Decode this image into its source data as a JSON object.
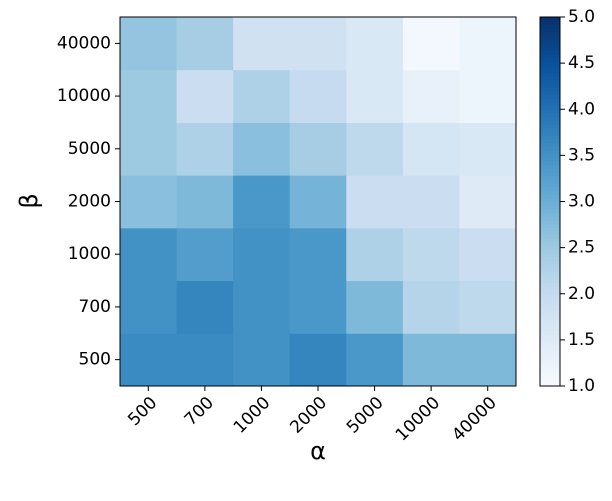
{
  "chart_data": {
    "type": "heatmap",
    "xlabel": "α",
    "ylabel": "β",
    "x_categories": [
      "500",
      "700",
      "1000",
      "2000",
      "5000",
      "10000",
      "40000"
    ],
    "y_categories": [
      "500",
      "700",
      "1000",
      "2000",
      "5000",
      "10000",
      "40000"
    ],
    "values": [
      [
        3.6,
        3.6,
        3.5,
        3.7,
        3.4,
        2.8,
        2.8
      ],
      [
        3.5,
        3.7,
        3.5,
        3.4,
        2.8,
        2.2,
        2.1
      ],
      [
        3.5,
        3.3,
        3.5,
        3.4,
        2.3,
        2.1,
        1.9
      ],
      [
        2.7,
        2.8,
        3.4,
        2.9,
        1.9,
        1.9,
        1.5
      ],
      [
        2.5,
        2.3,
        2.7,
        2.4,
        2.1,
        1.7,
        1.6
      ],
      [
        2.5,
        1.9,
        2.3,
        2.0,
        1.6,
        1.3,
        1.2
      ],
      [
        2.6,
        2.4,
        1.8,
        1.8,
        1.6,
        1.1,
        1.2
      ]
    ],
    "colormap": "Blues",
    "zlim": [
      1,
      5
    ],
    "zticks": [
      {
        "value": 1,
        "label": "1.0"
      },
      1.5,
      {
        "value": 2,
        "label": "2.0"
      },
      2.5,
      {
        "value": 3,
        "label": "3.0"
      },
      3.5,
      {
        "value": 4,
        "label": "4.0"
      },
      4.5,
      {
        "value": 5,
        "label": "5.0"
      }
    ]
  }
}
